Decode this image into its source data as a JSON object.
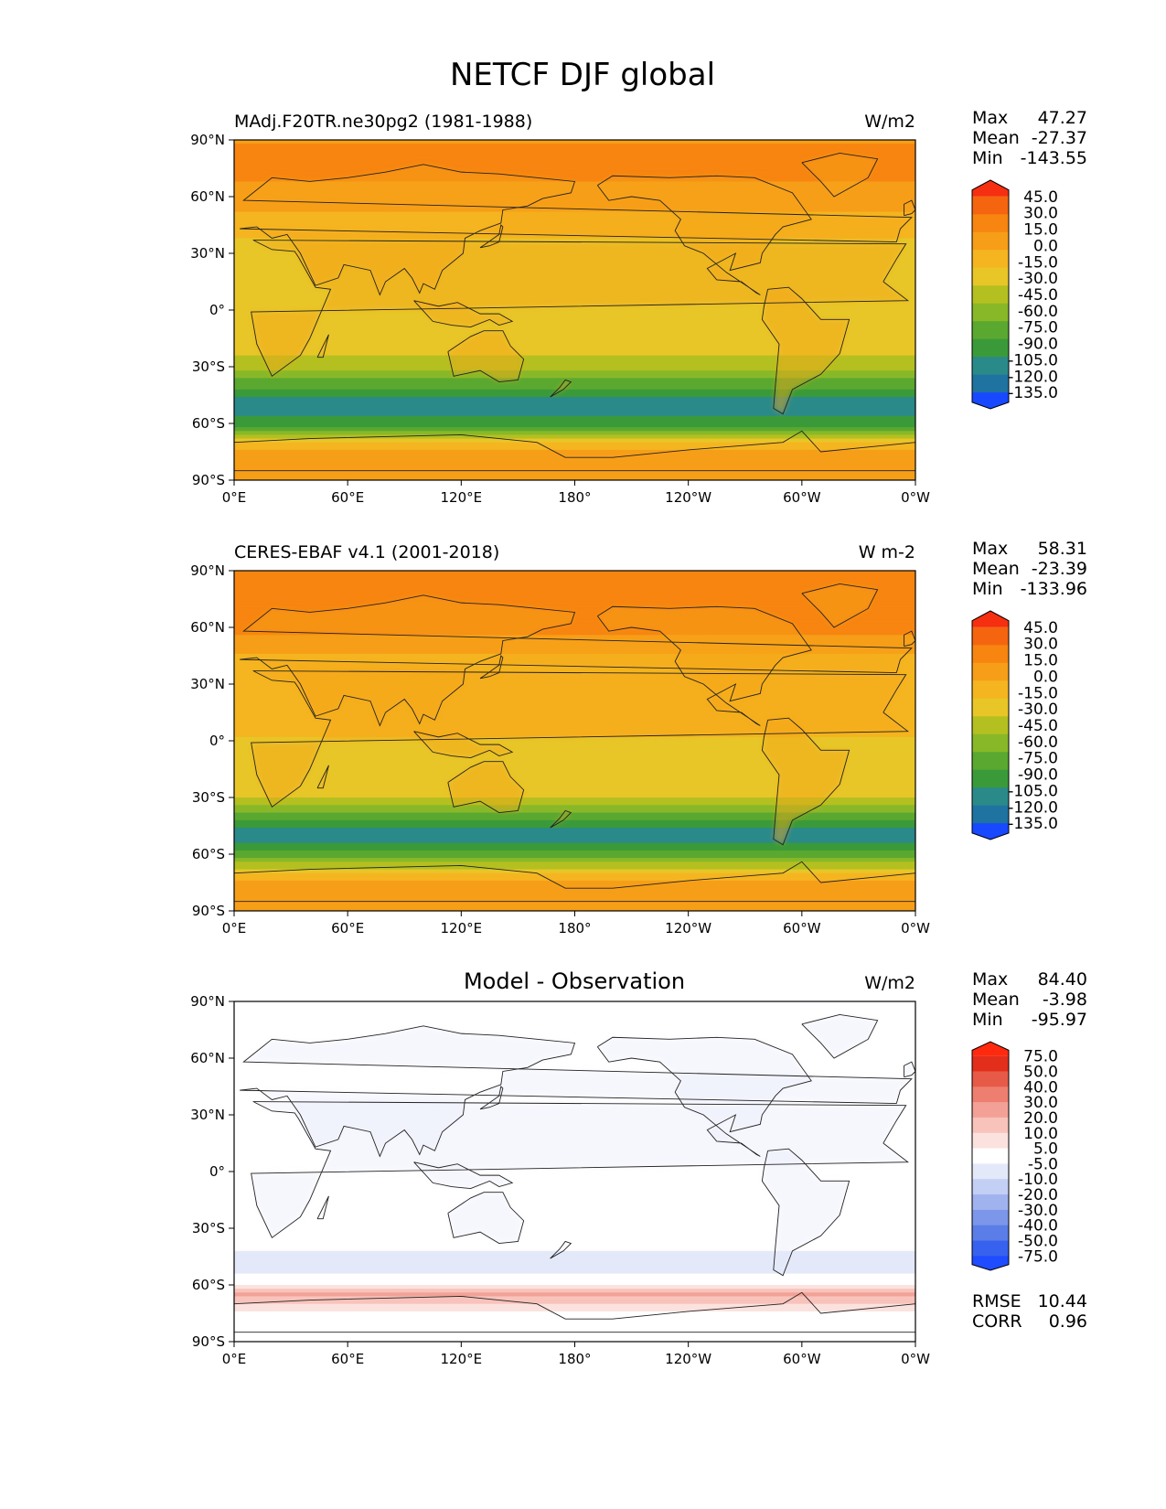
{
  "suptitle": "NETCF DJF global",
  "colors": {
    "model_obs_scale": [
      "#1848ff",
      "#1f73a0",
      "#2a8a8a",
      "#3a9a3a",
      "#5aa830",
      "#88b828",
      "#b4c020",
      "#e8c628",
      "#f5b520",
      "#f79e18",
      "#f78510",
      "#f56510",
      "#f52f10"
    ],
    "diff_scale": [
      "#1f4cff",
      "#3762ef",
      "#5a7de8",
      "#7c97ea",
      "#a1b3ef",
      "#c3cff5",
      "#e4e9fa",
      "#ffffff",
      "#fbe2de",
      "#f8c3bb",
      "#f3a196",
      "#ee7f70",
      "#e85a48",
      "#e32e1c",
      "#ff2a0e"
    ]
  },
  "map_axes": {
    "lat_ticks": [
      "90°N",
      "60°N",
      "30°N",
      "0°",
      "30°S",
      "60°S",
      "90°S"
    ],
    "lon_ticks": [
      "0°E",
      "60°E",
      "120°E",
      "180°",
      "120°W",
      "60°W",
      "0°W"
    ]
  },
  "panels": [
    {
      "id": "model",
      "title_left": "MAdj.F20TR.ne30pg2 (1981-1988)",
      "title_center": "",
      "units": "W/m2",
      "stats": [
        {
          "label": "Max",
          "value": "47.27"
        },
        {
          "label": "Mean",
          "value": "-27.37"
        },
        {
          "label": "Min",
          "value": "-143.55"
        }
      ],
      "colorbar_levels": [
        "45.0",
        "30.0",
        "15.0",
        "0.0",
        "-15.0",
        "-30.0",
        "-45.0",
        "-60.0",
        "-75.0",
        "-90.0",
        "-105.0",
        "-120.0",
        "-135.0"
      ],
      "metrics": []
    },
    {
      "id": "obs",
      "title_left": "CERES-EBAF v4.1 (2001-2018)",
      "title_center": "",
      "units": "W m-2",
      "stats": [
        {
          "label": "Max",
          "value": "58.31"
        },
        {
          "label": "Mean",
          "value": "-23.39"
        },
        {
          "label": "Min",
          "value": "-133.96"
        }
      ],
      "colorbar_levels": [
        "45.0",
        "30.0",
        "15.0",
        "0.0",
        "-15.0",
        "-30.0",
        "-45.0",
        "-60.0",
        "-75.0",
        "-90.0",
        "-105.0",
        "-120.0",
        "-135.0"
      ],
      "metrics": []
    },
    {
      "id": "diff",
      "title_left": "",
      "title_center": "Model - Observation",
      "units": "W/m2",
      "stats": [
        {
          "label": "Max",
          "value": "84.40"
        },
        {
          "label": "Mean",
          "value": "-3.98"
        },
        {
          "label": "Min",
          "value": "-95.97"
        }
      ],
      "colorbar_levels": [
        "75.0",
        "50.0",
        "40.0",
        "30.0",
        "20.0",
        "10.0",
        "5.0",
        "-5.0",
        "-10.0",
        "-20.0",
        "-30.0",
        "-40.0",
        "-50.0",
        "-75.0"
      ],
      "metrics": [
        {
          "label": "RMSE",
          "value": "10.44"
        },
        {
          "label": "CORR",
          "value": "0.96"
        }
      ]
    }
  ],
  "chart_data": [
    {
      "type": "heatmap",
      "title": "MAdj.F20TR.ne30pg2 (1981-1988)",
      "units": "W/m2",
      "xlim": [
        0,
        360
      ],
      "ylim": [
        -90,
        90
      ],
      "zonal_mean_profile": {
        "lat": [
          -90,
          -75,
          -60,
          -50,
          -40,
          -30,
          -15,
          0,
          15,
          30,
          45,
          60,
          75,
          90
        ],
        "value": [
          -5,
          0,
          -90,
          -115,
          -80,
          -45,
          -30,
          -30,
          -25,
          -30,
          -20,
          0,
          10,
          5
        ]
      },
      "stats": {
        "max": 47.27,
        "mean": -27.37,
        "min": -143.55
      }
    },
    {
      "type": "heatmap",
      "title": "CERES-EBAF v4.1 (2001-2018)",
      "units": "W m-2",
      "xlim": [
        0,
        360
      ],
      "ylim": [
        -90,
        90
      ],
      "zonal_mean_profile": {
        "lat": [
          -90,
          -75,
          -60,
          -50,
          -40,
          -30,
          -15,
          0,
          15,
          30,
          45,
          60,
          75,
          90
        ],
        "value": [
          -5,
          0,
          -75,
          -110,
          -75,
          -40,
          -25,
          -25,
          -20,
          -20,
          -10,
          10,
          20,
          10
        ]
      },
      "stats": {
        "max": 58.31,
        "mean": -23.39,
        "min": -133.96
      }
    },
    {
      "type": "heatmap",
      "title": "Model - Observation",
      "units": "W/m2",
      "xlim": [
        0,
        360
      ],
      "ylim": [
        -90,
        90
      ],
      "zonal_mean_profile": {
        "lat": [
          -90,
          -75,
          -65,
          -60,
          -50,
          -40,
          -30,
          -15,
          0,
          15,
          30,
          45,
          60,
          75,
          90
        ],
        "value": [
          0,
          0,
          30,
          -5,
          -15,
          -10,
          0,
          -5,
          -5,
          -5,
          -10,
          -10,
          -10,
          -5,
          0
        ]
      },
      "stats": {
        "max": 84.4,
        "mean": -3.98,
        "min": -95.97,
        "rmse": 10.44,
        "corr": 0.96
      }
    }
  ]
}
